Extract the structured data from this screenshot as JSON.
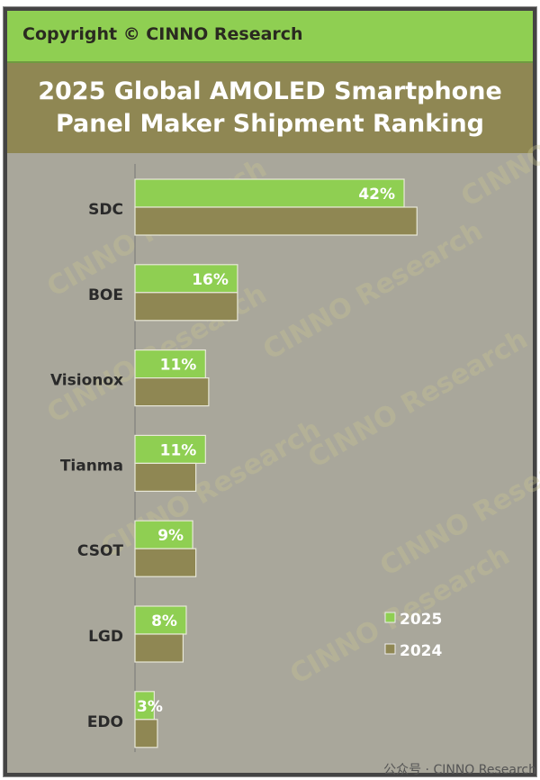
{
  "copyright": "Copyright © CINNO Research",
  "chart_data": {
    "type": "bar",
    "orientation": "horizontal",
    "title": "2025 Global AMOLED Smartphone Panel Maker Shipment Ranking",
    "categories": [
      "SDC",
      "BOE",
      "Visionox",
      "Tianma",
      "CSOT",
      "LGD",
      "EDO"
    ],
    "series": [
      {
        "name": "2025",
        "values": [
          42,
          16,
          11,
          11,
          9,
          8,
          3
        ],
        "labels": [
          "42%",
          "16%",
          "11%",
          "11%",
          "9%",
          "8%",
          "3%"
        ],
        "color": "#8fcf52"
      },
      {
        "name": "2024",
        "values": [
          44,
          16,
          11.5,
          9.5,
          9.5,
          7.5,
          3.5
        ],
        "color": "#8f8753"
      }
    ],
    "xlim": [
      0,
      60
    ],
    "grid": false,
    "legend": "bottom-right",
    "watermark": "CINNO Research"
  },
  "footer": "公众号 · CINNO Research"
}
